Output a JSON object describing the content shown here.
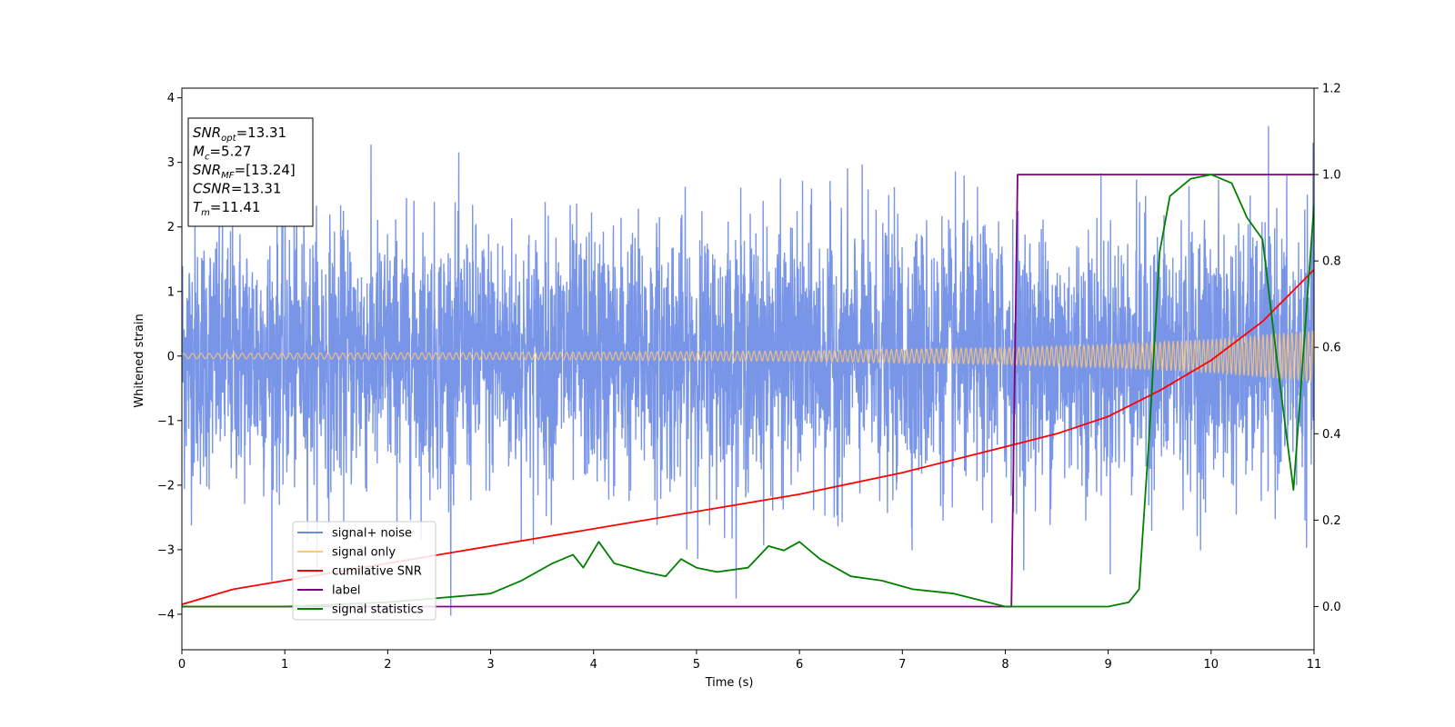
{
  "chart_data": {
    "type": "line",
    "xlabel": "Time (s)",
    "ylabel": "Whitened strain",
    "xlim": [
      0,
      11
    ],
    "ylim": [
      -4.55,
      4.15
    ],
    "y2lim": [
      -0.1,
      1.2
    ],
    "xticks": [
      "0",
      "1",
      "2",
      "3",
      "4",
      "5",
      "6",
      "7",
      "8",
      "9",
      "10",
      "11"
    ],
    "yticks": [
      "−4",
      "−3",
      "−2",
      "−1",
      "0",
      "1",
      "2",
      "3",
      "4"
    ],
    "y2ticks": [
      "0.0",
      "0.2",
      "0.4",
      "0.6",
      "0.8",
      "1.0",
      "1.2"
    ],
    "grid": false,
    "legend_position": "lower-left",
    "info_box": [
      {
        "base": "SNR",
        "sub": "opt",
        "rest": "=13.31"
      },
      {
        "base": "M",
        "sub": "c",
        "rest": "=5.27"
      },
      {
        "base": "SNR",
        "sub": "MF",
        "rest": "=[13.24]"
      },
      {
        "base": "CSNR",
        "sub": "",
        "rest": "=13.31"
      },
      {
        "base": "T",
        "sub": "m",
        "rest": "=11.41"
      }
    ],
    "series": [
      {
        "name": "signal+ noise",
        "color": "#6a8ae6",
        "axis": "left",
        "description_values": "whitened noise with standard deviation ~1.0 around 0, spikes up to about 3.7 and down to about -4.2"
      },
      {
        "name": "signal only",
        "color": "#ffc773",
        "axis": "left",
        "envelope": {
          "x": [
            0,
            2,
            4,
            6,
            8,
            9,
            10,
            11
          ],
          "amp": [
            0.04,
            0.05,
            0.06,
            0.08,
            0.13,
            0.18,
            0.26,
            0.4
          ]
        }
      },
      {
        "name": "cumilative SNR",
        "color": "#ff0000",
        "axis": "right",
        "x": [
          0,
          0.5,
          1,
          2,
          3,
          4,
          5,
          6,
          7,
          8,
          8.5,
          9,
          9.5,
          10,
          10.5,
          11
        ],
        "y": [
          0.005,
          0.04,
          0.06,
          0.1,
          0.14,
          0.18,
          0.22,
          0.26,
          0.31,
          0.37,
          0.4,
          0.44,
          0.5,
          0.57,
          0.66,
          0.78
        ]
      },
      {
        "name": "label",
        "color": "#800080",
        "axis": "right",
        "x": [
          0,
          8.06,
          8.12,
          11
        ],
        "y": [
          0.0,
          0.0,
          1.0,
          1.0
        ]
      },
      {
        "name": "signal statistics",
        "color": "#008000",
        "axis": "right",
        "x": [
          0,
          1,
          2,
          2.5,
          3,
          3.3,
          3.6,
          3.8,
          3.9,
          4.05,
          4.2,
          4.5,
          4.7,
          4.85,
          5.0,
          5.2,
          5.5,
          5.7,
          5.85,
          6.0,
          6.2,
          6.5,
          6.8,
          7.1,
          7.5,
          8.0,
          8.5,
          9.0,
          9.2,
          9.3,
          9.4,
          9.5,
          9.6,
          9.8,
          10.0,
          10.2,
          10.35,
          10.5,
          10.65,
          10.8,
          11.0
        ],
        "y": [
          0.0,
          0.0,
          0.01,
          0.02,
          0.03,
          0.06,
          0.1,
          0.12,
          0.09,
          0.15,
          0.1,
          0.08,
          0.07,
          0.11,
          0.09,
          0.08,
          0.09,
          0.14,
          0.13,
          0.15,
          0.11,
          0.07,
          0.06,
          0.04,
          0.03,
          0.0,
          0.0,
          0.0,
          0.01,
          0.04,
          0.4,
          0.82,
          0.95,
          0.99,
          1.0,
          0.98,
          0.9,
          0.85,
          0.55,
          0.27,
          0.93
        ]
      }
    ]
  }
}
